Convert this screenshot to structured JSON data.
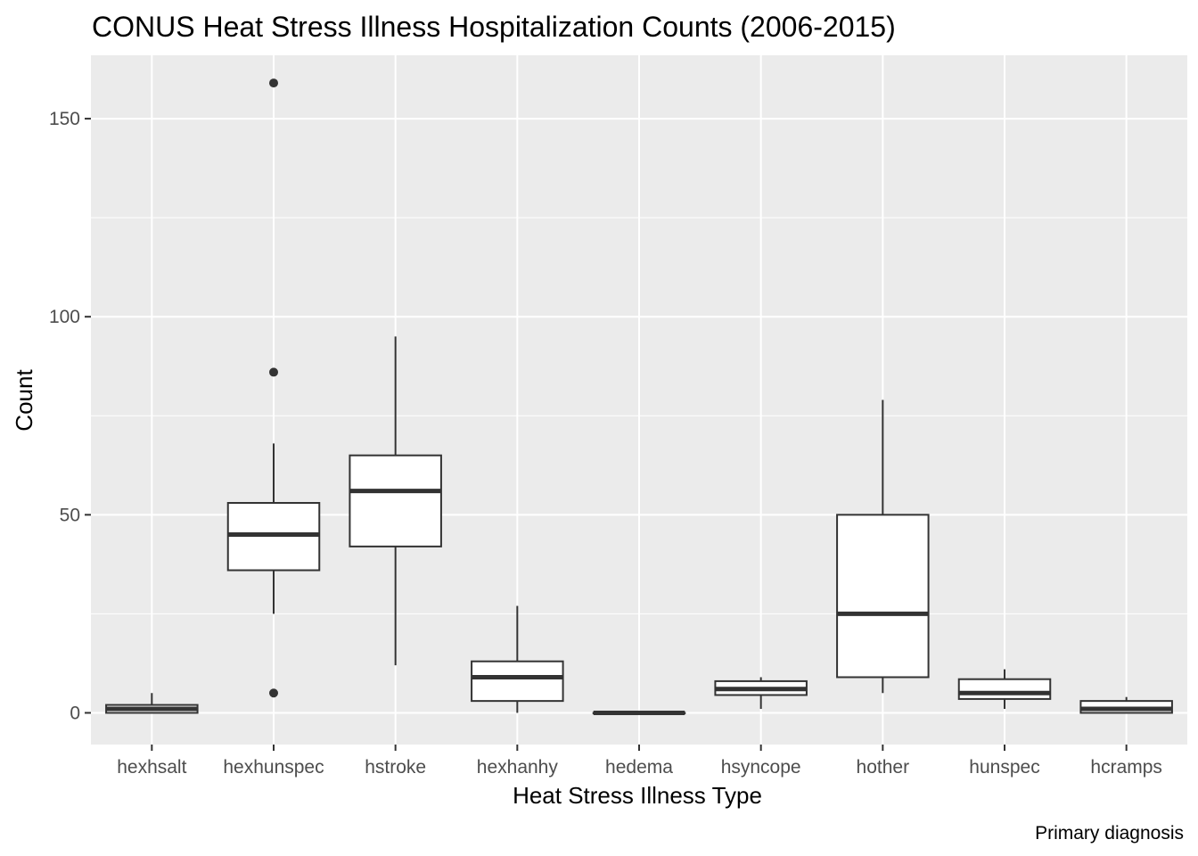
{
  "chart_data": {
    "type": "boxplot",
    "title": "CONUS Heat Stress Illness Hospitalization Counts (2006-2015)",
    "xlabel": "Heat Stress Illness Type",
    "ylabel": "Count",
    "caption": "Primary diagnosis",
    "ylim": [
      -8,
      166
    ],
    "yticks": [
      0,
      50,
      100,
      150
    ],
    "grid": true,
    "colors": {
      "panel": "#ebebeb",
      "grid": "#ffffff",
      "box_fill": "#ffffff",
      "box_line": "#333333"
    },
    "categories": [
      "hexhsalt",
      "hexhunspec",
      "hstroke",
      "hexhanhy",
      "hedema",
      "hsyncope",
      "hother",
      "hunspec",
      "hcramps"
    ],
    "boxes": [
      {
        "category": "hexhsalt",
        "min": 0,
        "q1": 0,
        "median": 1,
        "q3": 2,
        "max": 5,
        "outliers": []
      },
      {
        "category": "hexhunspec",
        "min": 25,
        "q1": 36,
        "median": 45,
        "q3": 53,
        "max": 68,
        "outliers": [
          159,
          86,
          5
        ]
      },
      {
        "category": "hstroke",
        "min": 12,
        "q1": 42,
        "median": 56,
        "q3": 65,
        "max": 95,
        "outliers": []
      },
      {
        "category": "hexhanhy",
        "min": 0,
        "q1": 3,
        "median": 9,
        "q3": 13,
        "max": 27,
        "outliers": []
      },
      {
        "category": "hedema",
        "min": 0,
        "q1": 0,
        "median": 0,
        "q3": 0,
        "max": 0,
        "outliers": []
      },
      {
        "category": "hsyncope",
        "min": 1,
        "q1": 4.5,
        "median": 6,
        "q3": 8,
        "max": 9,
        "outliers": []
      },
      {
        "category": "hother",
        "min": 5,
        "q1": 9,
        "median": 25,
        "q3": 50,
        "max": 79,
        "outliers": []
      },
      {
        "category": "hunspec",
        "min": 1,
        "q1": 3.5,
        "median": 5,
        "q3": 8.5,
        "max": 11,
        "outliers": []
      },
      {
        "category": "hcramps",
        "min": 0,
        "q1": 0,
        "median": 1,
        "q3": 3,
        "max": 4,
        "outliers": []
      }
    ]
  }
}
